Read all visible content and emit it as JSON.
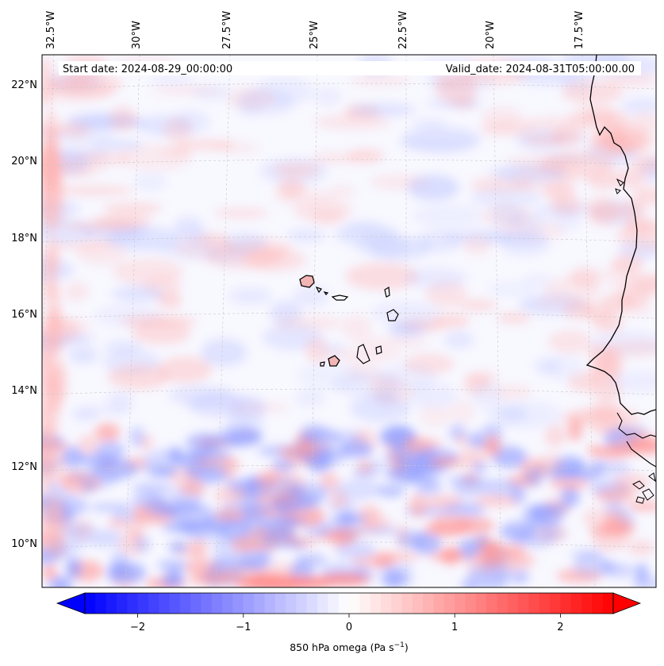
{
  "map": {
    "longitude_labels": [
      "32.5°W",
      "30°W",
      "27.5°W",
      "25°W",
      "22.5°W",
      "20°W",
      "17.5°W"
    ],
    "latitude_labels": [
      "22°N",
      "20°N",
      "18°N",
      "16°N",
      "14°N",
      "12°N",
      "10°N"
    ],
    "start_date": "Start date: 2024-08-29_00:00:00",
    "valid_date": "Valid_date: 2024-08-31T05:00:00.00",
    "colors": {
      "negative": "#0000ff",
      "neutral": "#ffffff",
      "positive": "#ff0000",
      "coastline": "#000000",
      "gridline": "#c8c8c8"
    }
  },
  "colorbar": {
    "tick_labels": [
      "−2",
      "−1",
      "0",
      "1",
      "2"
    ],
    "ticks": [
      -2,
      -1,
      0,
      1,
      2
    ],
    "range": [
      -2.5,
      2.5
    ],
    "label_main": "850 hPa omega (Pa s",
    "label_exp": "−1",
    "label_close": ")"
  }
}
